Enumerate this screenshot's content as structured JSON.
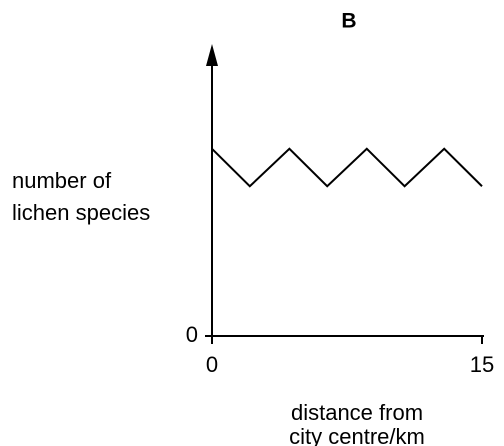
{
  "chart_data": {
    "type": "line",
    "title": "B",
    "ylabel": [
      "number of",
      "lichen species"
    ],
    "xlabel": [
      "distance from",
      "city centre/km"
    ],
    "x": [
      0,
      2.1,
      4.3,
      6.4,
      8.6,
      10.7,
      12.9,
      15
    ],
    "series": [
      {
        "name": null,
        "color": "#000000",
        "values": [
          6.5,
          5.2,
          6.5,
          5.2,
          6.5,
          5.2,
          6.5,
          5.2
        ]
      }
    ],
    "xlim": [
      0,
      15
    ],
    "xticks": [
      0,
      15
    ],
    "ylim": [
      0,
      10
    ],
    "yticks": [
      0
    ],
    "grid": false
  }
}
